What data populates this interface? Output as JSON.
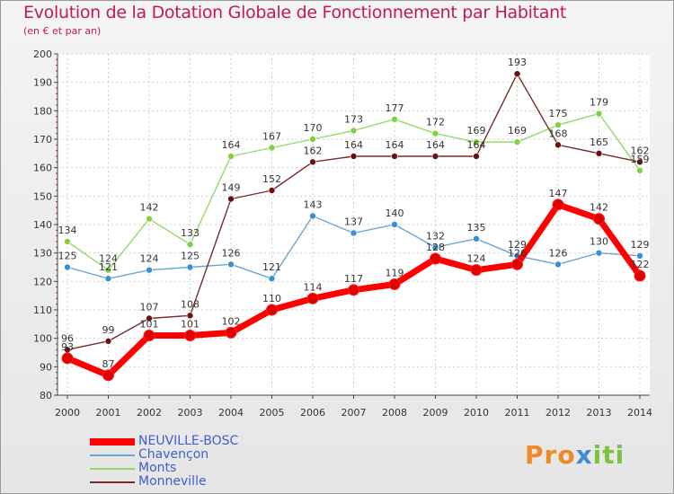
{
  "header": {
    "title": "Evolution de la Dotation Globale de Fonctionnement par Habitant",
    "subtitle": "(en € et par an)"
  },
  "logo": {
    "part1": "Pro",
    "part2": "x",
    "part3": "iti"
  },
  "colors": {
    "NEUVILLE-BOSC": "#ff0000",
    "Chavençon": "#6aa6cf",
    "Monts": "#93d96a",
    "Monneville": "#7a2a2a",
    "marker_NEUVILLE-BOSC": "#e00000",
    "marker_Chavençon": "#3c8fcf",
    "marker_Monts": "#80d040",
    "marker_Monneville": "#6a1010"
  },
  "chart_data": {
    "type": "line",
    "title": "Evolution de la Dotation Globale de Fonctionnement par Habitant",
    "subtitle": "(en € et par an)",
    "xlabel": "",
    "ylabel": "",
    "ylim": [
      80,
      200
    ],
    "yticks": [
      80,
      90,
      100,
      110,
      120,
      130,
      140,
      150,
      160,
      170,
      180,
      190,
      200
    ],
    "x": [
      "2000",
      "2001",
      "2002",
      "2003",
      "2004",
      "2005",
      "2006",
      "2007",
      "2008",
      "2009",
      "2010",
      "2011",
      "2012",
      "2013",
      "2014"
    ],
    "legend_position": "bottom-left",
    "series": [
      {
        "name": "Chavençon",
        "values": [
          125,
          121,
          124,
          125,
          126,
          121,
          143,
          137,
          140,
          132,
          135,
          129,
          126,
          130,
          129
        ]
      },
      {
        "name": "Monts",
        "values": [
          134,
          124,
          142,
          133,
          164,
          167,
          170,
          173,
          177,
          172,
          169,
          169,
          175,
          179,
          159
        ]
      },
      {
        "name": "Monneville",
        "values": [
          96,
          99,
          107,
          108,
          149,
          152,
          162,
          164,
          164,
          164,
          164,
          193,
          168,
          165,
          162
        ]
      },
      {
        "name": "NEUVILLE-BOSC",
        "values": [
          93,
          87,
          101,
          101,
          102,
          110,
          114,
          117,
          119,
          128,
          124,
          126,
          147,
          142,
          122
        ]
      }
    ],
    "legend": [
      "NEUVILLE-BOSC",
      "Chavençon",
      "Monts",
      "Monneville"
    ]
  }
}
